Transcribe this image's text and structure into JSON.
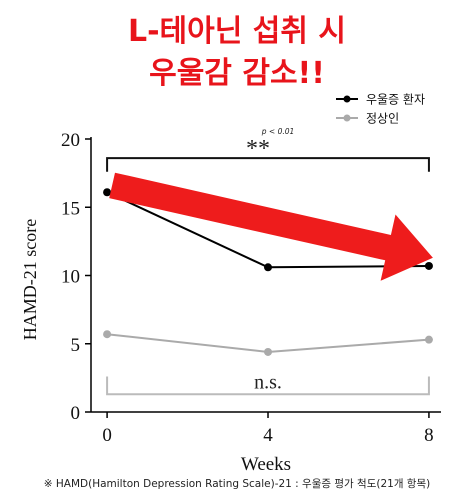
{
  "headline": {
    "line1": "L-테아닌 섭취 시",
    "line2": "우울감 감소!!"
  },
  "footnote": "※ HAMD(Hamilton Depression Rating Scale)-21 : 우울증 평가 척도(21개 항목)",
  "colors": {
    "headline": "#e8141b",
    "arrow": "#ee1c1c",
    "patients": "#000000",
    "healthy": "#aaaaaa",
    "bracket": "#111111",
    "ns_bracket": "#bbbbbb"
  },
  "chart_data": {
    "type": "line",
    "title": "",
    "xlabel": "Weeks",
    "ylabel": "HAMD-21 score",
    "x": [
      0,
      4,
      8
    ],
    "xlim": [
      -0.4,
      8.3
    ],
    "ylim": [
      0,
      20
    ],
    "xticks": [
      "0",
      "4",
      "8"
    ],
    "yticks": [
      "0",
      "5",
      "10",
      "15",
      "20"
    ],
    "legend_position": "top-right",
    "series": [
      {
        "name": "우울증 환자",
        "color": "#000000",
        "values": [
          16.1,
          10.6,
          10.7
        ]
      },
      {
        "name": "정상인",
        "color": "#aaaaaa",
        "values": [
          5.7,
          4.4,
          5.3
        ]
      }
    ],
    "annotations": {
      "significance": {
        "stars": "**",
        "pvalue": "p < 0.01",
        "from_x": 0,
        "to_x": 8
      },
      "nonsignificant": {
        "label": "n.s.",
        "from_x": 0,
        "to_x": 8
      }
    }
  }
}
